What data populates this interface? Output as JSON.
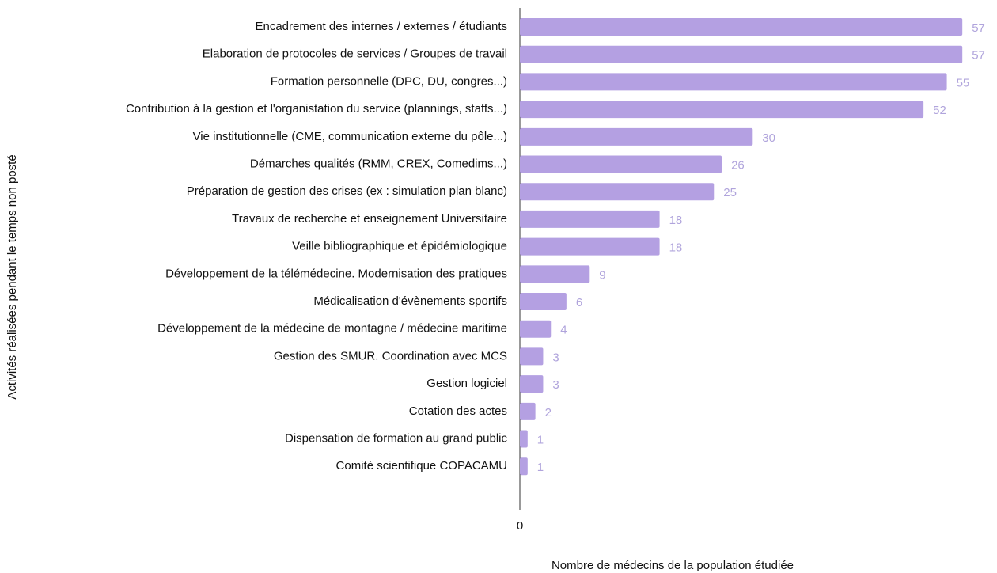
{
  "chart_data": {
    "type": "bar",
    "orientation": "horizontal",
    "categories": [
      "Encadrement des internes / externes / étudiants",
      "Elaboration de protocoles de services / Groupes de travail",
      "Formation personnelle (DPC, DU, congres...)",
      "Contribution à la gestion et l'organistation du service (plannings, staffs...)",
      "Vie institutionnelle (CME, communication externe du pôle...)",
      "Démarches qualités (RMM, CREX, Comedims...)",
      "Préparation de gestion des crises (ex : simulation plan blanc)",
      "Travaux de recherche et enseignement Universitaire",
      "Veille bibliographique et épidémiologique",
      "Développement de la télémédecine. Modernisation des pratiques",
      "Médicalisation d'évènements sportifs",
      "Développement de la médecine de montagne / médecine maritime",
      "Gestion des SMUR. Coordination avec MCS",
      "Gestion logiciel",
      "Cotation des actes",
      "Dispensation de formation au grand public",
      "Comité scientifique COPACAMU"
    ],
    "values": [
      57,
      57,
      55,
      52,
      30,
      26,
      25,
      18,
      18,
      9,
      6,
      4,
      3,
      3,
      2,
      1,
      1
    ],
    "color": "#b4a0e2",
    "xlim": [
      0,
      58
    ],
    "xticks": [
      0
    ],
    "xlabel": "Nombre de médecins de la population étudiée",
    "ylabel": "Activités réalisées pendant le temps non posté"
  }
}
